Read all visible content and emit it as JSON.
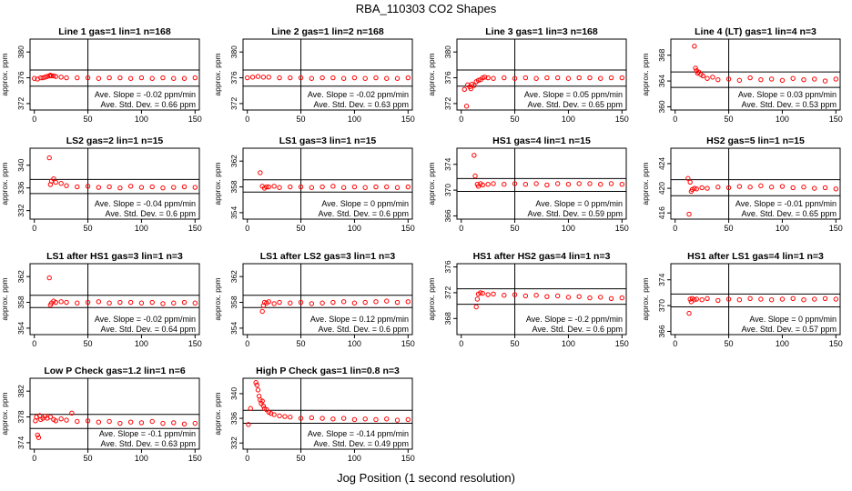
{
  "page": {
    "title": "RBA_110303  CO2 Shapes",
    "x_caption": "Jog Position (1 second resolution)"
  },
  "styles": {
    "point_color": "#ff0000",
    "axis_color": "#000000"
  },
  "chart_data": [
    {
      "type": "scatter",
      "title": "Line 1 gas=1 lin=1 n=168",
      "ylabel": "approx. ppm",
      "xlim": [
        -4,
        154
      ],
      "x_ticks": [
        0,
        50,
        100,
        150
      ],
      "ylim": [
        371,
        382
      ],
      "y_ticks": [
        372,
        376,
        380
      ],
      "hlines": [
        377.2,
        374.7
      ],
      "vline": 50,
      "stats": [
        "Ave. Slope = -0.02  ppm/min",
        "Ave. Std. Dev. = 0.66  ppm"
      ],
      "series": [
        {
          "x": [
            0,
            3,
            6,
            8,
            10,
            12,
            14,
            15,
            16,
            18,
            20,
            25,
            30,
            40,
            50,
            60,
            70,
            80,
            90,
            100,
            110,
            120,
            130,
            140,
            150
          ],
          "y": [
            375.9,
            375.8,
            376.0,
            376.0,
            376.1,
            376.2,
            376.3,
            376.4,
            376.3,
            376.3,
            376.2,
            376.1,
            376.0,
            376.0,
            376.0,
            375.9,
            376.0,
            376.0,
            375.9,
            376.0,
            375.9,
            376.0,
            375.9,
            375.9,
            376.0
          ]
        }
      ]
    },
    {
      "type": "scatter",
      "title": "Line 2 gas=1 lin=2 n=168",
      "ylabel": "approx. ppm",
      "xlim": [
        -4,
        154
      ],
      "x_ticks": [
        0,
        50,
        100,
        150
      ],
      "ylim": [
        371,
        382
      ],
      "y_ticks": [
        372,
        376,
        380
      ],
      "hlines": [
        377.2,
        374.7
      ],
      "vline": 50,
      "stats": [
        "Ave. Slope = -0.02  ppm/min",
        "Ave. Std. Dev. = 0.63  ppm"
      ],
      "series": [
        {
          "x": [
            0,
            5,
            10,
            15,
            20,
            30,
            40,
            50,
            60,
            70,
            80,
            90,
            100,
            110,
            120,
            130,
            140,
            150
          ],
          "y": [
            376.0,
            376.1,
            376.2,
            376.1,
            376.1,
            376.0,
            376.0,
            376.0,
            375.9,
            376.0,
            376.0,
            375.9,
            376.0,
            375.9,
            376.0,
            375.9,
            375.9,
            376.0
          ]
        }
      ]
    },
    {
      "type": "scatter",
      "title": "Line 3 gas=1 lin=3 n=168",
      "ylabel": "approx. ppm",
      "xlim": [
        -4,
        154
      ],
      "x_ticks": [
        0,
        50,
        100,
        150
      ],
      "ylim": [
        371,
        382
      ],
      "y_ticks": [
        372,
        376,
        380
      ],
      "hlines": [
        377.2,
        374.7
      ],
      "vline": 50,
      "stats": [
        "Ave. Slope = 0.05  ppm/min",
        "Ave. Std. Dev. = 0.65  ppm"
      ],
      "series": [
        {
          "x": [
            3,
            5,
            6,
            8,
            9,
            10,
            12,
            14,
            16,
            18,
            20,
            22,
            25,
            30,
            40,
            50,
            60,
            70,
            80,
            90,
            100,
            110,
            120,
            130,
            140,
            150
          ],
          "y": [
            374.2,
            371.6,
            374.9,
            374.6,
            374.3,
            375.0,
            374.8,
            375.4,
            375.6,
            375.7,
            376.0,
            376.1,
            376.0,
            375.9,
            376.0,
            375.9,
            376.0,
            375.9,
            376.0,
            376.0,
            375.9,
            376.0,
            376.0,
            375.9,
            376.0,
            376.0
          ]
        }
      ]
    },
    {
      "type": "scatter",
      "title": "Line 4 (LT) gas=1 lin=4 n=3",
      "ylabel": "approx. ppm",
      "xlim": [
        -4,
        154
      ],
      "x_ticks": [
        0,
        50,
        100,
        150
      ],
      "ylim": [
        359.5,
        370.5
      ],
      "y_ticks": [
        360,
        364,
        368
      ],
      "hlines": [
        365.4,
        363.0
      ],
      "vline": 50,
      "stats": [
        "Ave. Slope = 0.03  ppm/min",
        "Ave. Std. Dev. = 0.53  ppm"
      ],
      "series": [
        {
          "x": [
            18,
            19,
            20,
            21,
            22,
            24,
            26,
            30,
            35,
            40,
            50,
            60,
            70,
            80,
            90,
            100,
            110,
            120,
            130,
            140,
            150
          ],
          "y": [
            369.4,
            366.0,
            365.6,
            365.2,
            365.4,
            365.0,
            364.8,
            364.4,
            364.6,
            364.2,
            364.3,
            364.1,
            364.5,
            364.2,
            364.3,
            364.1,
            364.4,
            364.2,
            364.3,
            364.0,
            364.3
          ]
        }
      ]
    },
    {
      "type": "scatter",
      "title": "LS2 gas=2 lin=1 n=15",
      "ylabel": "approx. ppm",
      "xlim": [
        -4,
        154
      ],
      "x_ticks": [
        0,
        50,
        100,
        150
      ],
      "ylim": [
        330.5,
        343
      ],
      "y_ticks": [
        332,
        336,
        340
      ],
      "hlines": [
        337.5,
        335.0
      ],
      "vline": 50,
      "stats": [
        "Ave. Slope = -0.04  ppm/min",
        "Ave. Std. Dev. = 0.6  ppm"
      ],
      "series": [
        {
          "x": [
            14,
            15,
            16,
            18,
            20,
            25,
            30,
            40,
            50,
            60,
            70,
            80,
            90,
            100,
            110,
            120,
            130,
            140,
            150
          ],
          "y": [
            341.3,
            336.6,
            337.2,
            337.6,
            337.0,
            336.8,
            336.4,
            336.2,
            336.3,
            336.1,
            336.2,
            336.0,
            336.3,
            336.1,
            336.2,
            336.0,
            336.1,
            336.2,
            336.1
          ]
        }
      ]
    },
    {
      "type": "scatter",
      "title": "LS1 gas=3 lin=1 n=15",
      "ylabel": "approx. ppm",
      "xlim": [
        -4,
        154
      ],
      "x_ticks": [
        0,
        50,
        100,
        150
      ],
      "ylim": [
        353,
        364
      ],
      "y_ticks": [
        354,
        358,
        362
      ],
      "hlines": [
        359.1,
        357.2
      ],
      "vline": 50,
      "stats": [
        "Ave. Slope = 0  ppm/min",
        "Ave. Std. Dev. = 0.6  ppm"
      ],
      "series": [
        {
          "x": [
            12,
            14,
            16,
            18,
            20,
            25,
            30,
            40,
            50,
            60,
            70,
            80,
            90,
            100,
            110,
            120,
            130,
            140,
            150
          ],
          "y": [
            360.2,
            358.1,
            357.8,
            358.0,
            358.0,
            358.1,
            357.9,
            358.0,
            358.0,
            357.9,
            358.0,
            358.1,
            357.9,
            358.0,
            357.9,
            358.0,
            358.0,
            357.9,
            358.0
          ]
        }
      ]
    },
    {
      "type": "scatter",
      "title": "HS1 gas=4 lin=1 n=15",
      "ylabel": "approx. ppm",
      "xlim": [
        -4,
        154
      ],
      "x_ticks": [
        0,
        50,
        100,
        150
      ],
      "ylim": [
        365.5,
        376.5
      ],
      "y_ticks": [
        366,
        370,
        374
      ],
      "hlines": [
        371.8,
        369.8
      ],
      "vline": 50,
      "stats": [
        "Ave. Slope = 0  ppm/min",
        "Ave. Std. Dev. = 0.59  ppm"
      ],
      "series": [
        {
          "x": [
            12,
            13,
            15,
            16,
            18,
            20,
            25,
            30,
            40,
            50,
            60,
            70,
            80,
            90,
            100,
            110,
            120,
            130,
            140,
            150
          ],
          "y": [
            375.4,
            372.2,
            370.9,
            370.6,
            371.0,
            370.8,
            370.9,
            371.0,
            370.9,
            371.0,
            370.9,
            371.0,
            370.8,
            371.0,
            370.9,
            371.0,
            371.0,
            370.9,
            371.0,
            370.9
          ]
        }
      ]
    },
    {
      "type": "scatter",
      "title": "HS2 gas=5 lin=1 n=15",
      "ylabel": "approx. ppm",
      "xlim": [
        -4,
        154
      ],
      "x_ticks": [
        0,
        50,
        100,
        150
      ],
      "ylim": [
        415,
        426.5
      ],
      "y_ticks": [
        416,
        420,
        424
      ],
      "hlines": [
        421.4,
        418.8
      ],
      "vline": 50,
      "stats": [
        "Ave. Slope = -0.01  ppm/min",
        "Ave. Std. Dev. = 0.65  ppm"
      ],
      "series": [
        {
          "x": [
            12,
            13,
            14,
            15,
            16,
            18,
            20,
            25,
            30,
            40,
            50,
            60,
            70,
            80,
            90,
            100,
            110,
            120,
            130,
            140,
            150
          ],
          "y": [
            421.6,
            415.8,
            421.0,
            419.5,
            419.8,
            420.0,
            419.9,
            420.1,
            420.0,
            420.2,
            420.1,
            420.3,
            420.2,
            420.4,
            420.2,
            420.3,
            420.1,
            420.2,
            420.0,
            420.1,
            419.9
          ]
        }
      ]
    },
    {
      "type": "scatter",
      "title": "LS1 after HS1 gas=3 lin=1 n=3",
      "ylabel": "approx. ppm",
      "xlim": [
        -4,
        154
      ],
      "x_ticks": [
        0,
        50,
        100,
        150
      ],
      "ylim": [
        353,
        364
      ],
      "y_ticks": [
        354,
        358,
        362
      ],
      "hlines": [
        359.1,
        357.2
      ],
      "vline": 50,
      "stats": [
        "Ave. Slope = -0.02  ppm/min",
        "Ave. Std. Dev. = 0.64  ppm"
      ],
      "series": [
        {
          "x": [
            14,
            15,
            16,
            18,
            20,
            25,
            30,
            40,
            50,
            60,
            70,
            80,
            90,
            100,
            110,
            120,
            130,
            140,
            150
          ],
          "y": [
            361.8,
            357.6,
            357.9,
            358.2,
            358.0,
            358.1,
            358.0,
            357.9,
            358.0,
            358.1,
            357.9,
            358.0,
            358.0,
            357.9,
            358.0,
            357.8,
            357.9,
            358.0,
            357.9
          ]
        }
      ]
    },
    {
      "type": "scatter",
      "title": "LS1 after LS2 gas=3 lin=1 n=3",
      "ylabel": "approx. ppm",
      "xlim": [
        -4,
        154
      ],
      "x_ticks": [
        0,
        50,
        100,
        150
      ],
      "ylim": [
        353,
        364
      ],
      "y_ticks": [
        354,
        358,
        362
      ],
      "hlines": [
        359.1,
        357.2
      ],
      "vline": 50,
      "stats": [
        "Ave. Slope = 0.12  ppm/min",
        "Ave. Std. Dev. = 0.6  ppm"
      ],
      "series": [
        {
          "x": [
            14,
            15,
            16,
            18,
            20,
            25,
            30,
            40,
            50,
            60,
            70,
            80,
            90,
            100,
            110,
            120,
            130,
            140,
            150
          ],
          "y": [
            356.6,
            357.5,
            358.0,
            357.9,
            358.1,
            357.8,
            358.0,
            357.9,
            358.0,
            357.8,
            357.9,
            358.0,
            358.1,
            357.9,
            358.0,
            358.1,
            358.2,
            358.0,
            358.1
          ]
        }
      ]
    },
    {
      "type": "scatter",
      "title": "HS1 after HS2 gas=4 lin=1 n=3",
      "ylabel": "approx. ppm",
      "xlim": [
        -4,
        154
      ],
      "x_ticks": [
        0,
        50,
        100,
        150
      ],
      "ylim": [
        365.5,
        376.5
      ],
      "y_ticks": [
        368,
        372,
        376
      ],
      "hlines": [
        372.6,
        370.2
      ],
      "vline": 50,
      "stats": [
        "Ave. Slope = -0.2  ppm/min",
        "Ave. Std. Dev. = 0.6  ppm"
      ],
      "series": [
        {
          "x": [
            14,
            15,
            16,
            18,
            20,
            25,
            30,
            40,
            50,
            60,
            70,
            80,
            90,
            100,
            110,
            120,
            130,
            140,
            150
          ],
          "y": [
            369.8,
            371.0,
            371.8,
            372.0,
            371.9,
            371.7,
            371.8,
            371.6,
            371.7,
            371.5,
            371.6,
            371.4,
            371.5,
            371.3,
            371.4,
            371.2,
            371.3,
            371.1,
            371.2
          ]
        }
      ]
    },
    {
      "type": "scatter",
      "title": "HS1 after LS1 gas=4 lin=1 n=3",
      "ylabel": "approx. ppm",
      "xlim": [
        -4,
        154
      ],
      "x_ticks": [
        0,
        50,
        100,
        150
      ],
      "ylim": [
        365.5,
        376.5
      ],
      "y_ticks": [
        366,
        370,
        374
      ],
      "hlines": [
        371.8,
        369.8
      ],
      "vline": 50,
      "stats": [
        "Ave. Slope = 0  ppm/min",
        "Ave. Std. Dev. = 0.57  ppm"
      ],
      "series": [
        {
          "x": [
            13,
            14,
            15,
            16,
            18,
            20,
            25,
            30,
            40,
            50,
            60,
            70,
            80,
            90,
            100,
            110,
            120,
            130,
            140,
            150
          ],
          "y": [
            368.8,
            371.0,
            370.6,
            371.1,
            370.9,
            371.0,
            370.9,
            371.1,
            370.8,
            371.0,
            370.9,
            371.1,
            371.0,
            370.9,
            371.0,
            371.1,
            370.9,
            371.0,
            371.1,
            371.0
          ]
        }
      ]
    },
    {
      "type": "scatter",
      "title": "Low P Check gas=1.2 lin=1 n=6",
      "ylabel": "approx. ppm",
      "xlim": [
        -4,
        154
      ],
      "x_ticks": [
        0,
        50,
        100,
        150
      ],
      "ylim": [
        373,
        384
      ],
      "y_ticks": [
        374,
        378,
        382
      ],
      "hlines": [
        378.4,
        376.2
      ],
      "vline": 50,
      "stats": [
        "Ave. Slope = -0.1  ppm/min",
        "Ave. Std. Dev. = 0.63  ppm"
      ],
      "series": [
        {
          "x": [
            1,
            2,
            3,
            4,
            5,
            6,
            8,
            10,
            12,
            15,
            18,
            20,
            25,
            30,
            35,
            40,
            50,
            60,
            70,
            80,
            90,
            100,
            110,
            120,
            130,
            140,
            150
          ],
          "y": [
            377.4,
            378.0,
            375.2,
            374.8,
            378.2,
            377.6,
            377.8,
            378.1,
            377.8,
            378.0,
            377.6,
            377.4,
            377.7,
            377.5,
            378.6,
            377.3,
            377.4,
            377.2,
            377.3,
            377.0,
            377.2,
            377.1,
            377.3,
            377.0,
            377.1,
            376.9,
            377.0
          ]
        }
      ]
    },
    {
      "type": "scatter",
      "title": "High P Check gas=1 lin=0.8 n=3",
      "ylabel": "approx. ppm",
      "xlim": [
        -4,
        154
      ],
      "x_ticks": [
        0,
        50,
        100,
        150
      ],
      "ylim": [
        331,
        342.5
      ],
      "y_ticks": [
        332,
        336,
        340
      ],
      "hlines": [
        337.3,
        335.2
      ],
      "vline": 50,
      "stats": [
        "Ave. Slope = -0.14  ppm/min",
        "Ave. Std. Dev. = 0.49  ppm"
      ],
      "series": [
        {
          "x": [
            1,
            3,
            8,
            9,
            10,
            11,
            12,
            13,
            14,
            15,
            16,
            18,
            20,
            22,
            25,
            30,
            35,
            40,
            50,
            60,
            70,
            80,
            90,
            100,
            110,
            120,
            130,
            140,
            150
          ],
          "y": [
            335.0,
            337.6,
            341.8,
            341.4,
            340.6,
            339.6,
            339.0,
            338.4,
            338.8,
            338.0,
            337.6,
            337.4,
            337.0,
            336.8,
            336.6,
            336.4,
            336.3,
            336.2,
            336.0,
            336.1,
            336.0,
            335.9,
            336.0,
            335.8,
            335.9,
            335.8,
            335.9,
            335.7,
            335.8
          ]
        }
      ]
    }
  ]
}
